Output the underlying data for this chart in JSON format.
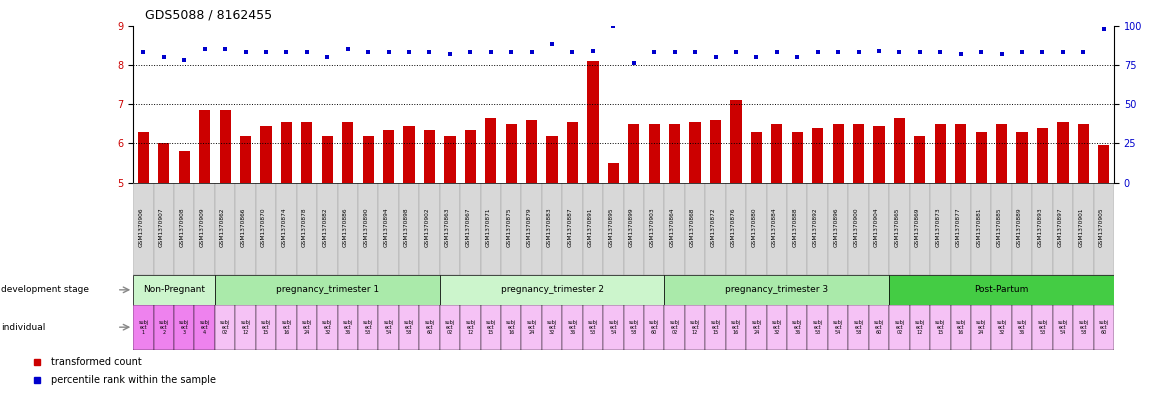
{
  "title": "GDS5088 / 8162455",
  "samples": [
    "GSM1370906",
    "GSM1370907",
    "GSM1370908",
    "GSM1370909",
    "GSM1370862",
    "GSM1370866",
    "GSM1370870",
    "GSM1370874",
    "GSM1370878",
    "GSM1370882",
    "GSM1370886",
    "GSM1370890",
    "GSM1370894",
    "GSM1370898",
    "GSM1370902",
    "GSM1370863",
    "GSM1370867",
    "GSM1370871",
    "GSM1370875",
    "GSM1370879",
    "GSM1370883",
    "GSM1370887",
    "GSM1370891",
    "GSM1370895",
    "GSM1370899",
    "GSM1370903",
    "GSM1370864",
    "GSM1370868",
    "GSM1370872",
    "GSM1370876",
    "GSM1370880",
    "GSM1370884",
    "GSM1370888",
    "GSM1370892",
    "GSM1370896",
    "GSM1370900",
    "GSM1370904",
    "GSM1370865",
    "GSM1370869",
    "GSM1370873",
    "GSM1370877",
    "GSM1370881",
    "GSM1370885",
    "GSM1370889",
    "GSM1370893",
    "GSM1370897",
    "GSM1370901",
    "GSM1370905"
  ],
  "bar_values": [
    6.3,
    6.0,
    5.8,
    6.85,
    6.85,
    6.2,
    6.45,
    6.55,
    6.55,
    6.2,
    6.55,
    6.2,
    6.35,
    6.45,
    6.35,
    6.2,
    6.35,
    6.65,
    6.5,
    6.6,
    6.2,
    6.55,
    8.1,
    5.5,
    6.5,
    6.5,
    6.5,
    6.55,
    6.6,
    7.1,
    6.3,
    6.5,
    6.3,
    6.4,
    6.5,
    6.5,
    6.45,
    6.65,
    6.2,
    6.5,
    6.5,
    6.3,
    6.5,
    6.3,
    6.4,
    6.55,
    6.5,
    5.95
  ],
  "dot_percentiles": [
    83,
    80,
    78,
    85,
    85,
    83,
    83,
    83,
    83,
    80,
    85,
    83,
    83,
    83,
    83,
    82,
    83,
    83,
    83,
    83,
    88,
    83,
    84,
    100,
    76,
    83,
    83,
    83,
    80,
    83,
    80,
    83,
    80,
    83,
    83,
    83,
    84,
    83,
    83,
    83,
    82,
    83,
    82,
    83,
    83,
    83,
    83,
    98
  ],
  "ylim_left": [
    5.0,
    9.0
  ],
  "yticks_left": [
    5,
    6,
    7,
    8,
    9
  ],
  "ylim_right": [
    0,
    100
  ],
  "yticks_right": [
    0,
    25,
    50,
    75,
    100
  ],
  "stages": [
    {
      "label": "Non-Pregnant",
      "start": 0,
      "end": 4
    },
    {
      "label": "pregnancy_trimester 1",
      "start": 4,
      "end": 15
    },
    {
      "label": "pregnancy_trimester 2",
      "start": 15,
      "end": 26
    },
    {
      "label": "pregnancy_trimester 3",
      "start": 26,
      "end": 37
    },
    {
      "label": "Post-Partum",
      "start": 37,
      "end": 48
    }
  ],
  "stage_colors": [
    "#ccf5cc",
    "#aaeaaa",
    "#ccf5cc",
    "#aaeaaa",
    "#44cc44"
  ],
  "indiv_labels_top": [
    "subj",
    "subj",
    "subj",
    "subj",
    "subj",
    "subj",
    "subj",
    "subj",
    "subj",
    "subj",
    "subj",
    "subj",
    "subj",
    "subj",
    "subj",
    "subj",
    "subj",
    "subj",
    "subj",
    "subj",
    "subj",
    "subj",
    "subj",
    "subj",
    "subj",
    "subj",
    "subj",
    "subj",
    "subj",
    "subj",
    "subj",
    "subj",
    "subj",
    "subj",
    "subj",
    "subj",
    "subj",
    "subj",
    "subj",
    "subj",
    "subj",
    "subj",
    "subj",
    "subj",
    "subj",
    "subj",
    "subj",
    "subj"
  ],
  "indiv_labels_mid": [
    "ect",
    "ect",
    "ect",
    "ect",
    "ect",
    "ect",
    "ect",
    "ect",
    "ect",
    "ect",
    "ect",
    "ect",
    "ect",
    "ect",
    "ect",
    "ect",
    "ect",
    "ect",
    "ect",
    "ect",
    "ect",
    "ect",
    "ect",
    "ect",
    "ect",
    "ect",
    "ect",
    "ect",
    "ect",
    "ect",
    "ect",
    "ect",
    "ect",
    "ect",
    "ect",
    "ect",
    "ect",
    "ect",
    "ect",
    "ect",
    "ect",
    "ect",
    "ect",
    "ect",
    "ect",
    "ect",
    "ect",
    "ect"
  ],
  "indiv_labels_bot": [
    "1",
    "2",
    "3",
    "4",
    "02",
    "12",
    "15",
    "16",
    "24",
    "32",
    "36",
    "53",
    "54",
    "58",
    "60",
    "02",
    "12",
    "15",
    "16",
    "24",
    "32",
    "36",
    "53",
    "54",
    "58",
    "60",
    "02",
    "12",
    "15",
    "16",
    "24",
    "32",
    "36",
    "53",
    "54",
    "58",
    "60",
    "02",
    "12",
    "15",
    "16",
    "24",
    "32",
    "36",
    "53",
    "54",
    "58",
    "60"
  ],
  "bar_color": "#cc0000",
  "dot_color": "#0000cc",
  "bg_color": "#ffffff",
  "title_fontsize": 9,
  "tick_fontsize": 7,
  "sample_fontsize": 5
}
